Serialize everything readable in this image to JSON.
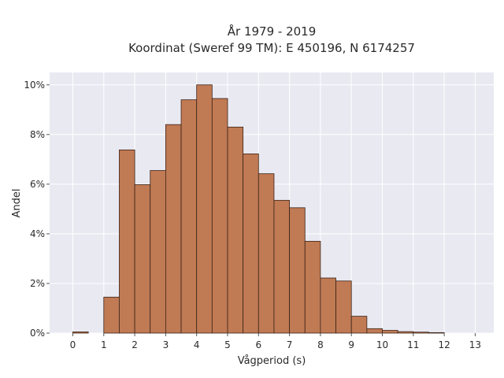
{
  "chart_data": {
    "type": "bar",
    "title": "År 1979 - 2019",
    "subtitle": "Koordinat (Sweref 99 TM): E 450196, N 6174257",
    "xlabel": "Vågperiod (s)",
    "ylabel": "Andel",
    "xlim": [
      -0.75,
      13.6
    ],
    "ylim": [
      0,
      0.105
    ],
    "grid": true,
    "bin_width": 0.5,
    "x_ticks": [
      0,
      1,
      2,
      3,
      4,
      5,
      6,
      7,
      8,
      9,
      10,
      11,
      12,
      13
    ],
    "x_tick_labels": [
      "0",
      "1",
      "2",
      "3",
      "4",
      "5",
      "6",
      "7",
      "8",
      "9",
      "10",
      "11",
      "12",
      "13"
    ],
    "y_ticks": [
      0,
      0.02,
      0.04,
      0.06,
      0.08,
      0.1
    ],
    "y_tick_labels": [
      "0%",
      "2%",
      "4%",
      "6%",
      "8%",
      "10%"
    ],
    "bar_color": "#c07a54",
    "edge_color": "#3b2418",
    "plot_background": "#e9e9f2",
    "bins": [
      {
        "x0": 0.0,
        "value": 0.0005
      },
      {
        "x0": 0.5,
        "value": 0.0
      },
      {
        "x0": 1.0,
        "value": 0.0145
      },
      {
        "x0": 1.5,
        "value": 0.0738
      },
      {
        "x0": 2.0,
        "value": 0.0598
      },
      {
        "x0": 2.5,
        "value": 0.0655
      },
      {
        "x0": 3.0,
        "value": 0.084
      },
      {
        "x0": 3.5,
        "value": 0.094
      },
      {
        "x0": 4.0,
        "value": 0.1
      },
      {
        "x0": 4.5,
        "value": 0.0945
      },
      {
        "x0": 5.0,
        "value": 0.083
      },
      {
        "x0": 5.5,
        "value": 0.0722
      },
      {
        "x0": 6.0,
        "value": 0.0642
      },
      {
        "x0": 6.5,
        "value": 0.0535
      },
      {
        "x0": 7.0,
        "value": 0.0505
      },
      {
        "x0": 7.5,
        "value": 0.037
      },
      {
        "x0": 8.0,
        "value": 0.0222
      },
      {
        "x0": 8.5,
        "value": 0.021
      },
      {
        "x0": 9.0,
        "value": 0.0068
      },
      {
        "x0": 9.5,
        "value": 0.0018
      },
      {
        "x0": 10.0,
        "value": 0.0011
      },
      {
        "x0": 10.5,
        "value": 0.0006
      },
      {
        "x0": 11.0,
        "value": 0.0004
      },
      {
        "x0": 11.5,
        "value": 0.0002
      }
    ]
  }
}
